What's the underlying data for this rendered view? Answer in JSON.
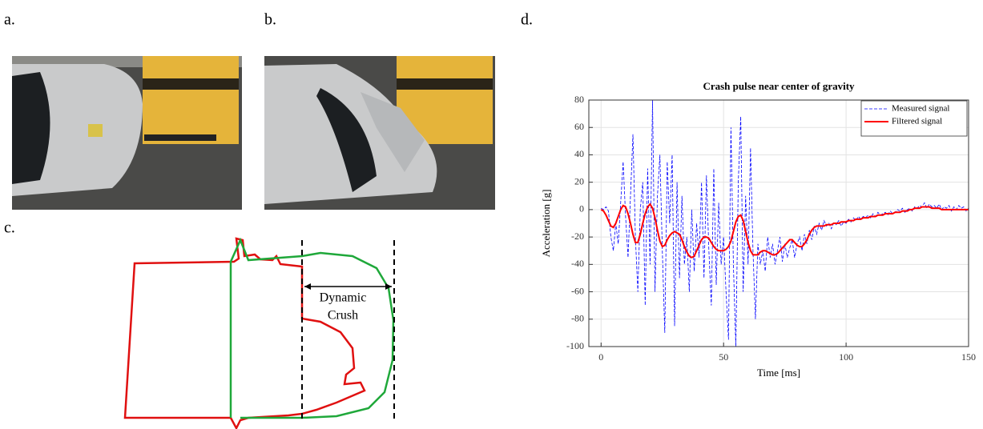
{
  "panels": {
    "a": "a.",
    "b": "b.",
    "c": "c.",
    "d": "d."
  },
  "diagram": {
    "label_lines": [
      "Dynamic",
      "Crush"
    ]
  },
  "chart_data": {
    "type": "line",
    "title": "Crash pulse near center of gravity",
    "x_label": "Time [ms]",
    "y_label": "Acceleration [g]",
    "xlim": [
      -5,
      150
    ],
    "ylim": [
      -100,
      80
    ],
    "xticks": [
      0,
      50,
      100,
      150
    ],
    "yticks": [
      -100,
      -80,
      -60,
      -40,
      -20,
      0,
      20,
      40,
      60,
      80
    ],
    "grid": true,
    "legend": "upper right",
    "x": [
      0,
      1,
      2,
      3,
      4,
      5,
      6,
      7,
      8,
      9,
      10,
      11,
      12,
      13,
      14,
      15,
      16,
      17,
      18,
      19,
      20,
      21,
      22,
      23,
      24,
      25,
      26,
      27,
      28,
      29,
      30,
      31,
      32,
      33,
      34,
      35,
      36,
      37,
      38,
      39,
      40,
      41,
      42,
      43,
      44,
      45,
      46,
      47,
      48,
      49,
      50,
      51,
      52,
      53,
      54,
      55,
      56,
      57,
      58,
      59,
      60,
      61,
      62,
      63,
      64,
      65,
      66,
      67,
      68,
      69,
      70,
      71,
      72,
      73,
      74,
      75,
      76,
      77,
      78,
      79,
      80,
      81,
      82,
      83,
      84,
      85,
      86,
      87,
      88,
      89,
      90,
      91,
      92,
      93,
      94,
      95,
      96,
      97,
      98,
      99,
      100,
      101,
      102,
      103,
      104,
      105,
      106,
      107,
      108,
      109,
      110,
      111,
      112,
      113,
      114,
      115,
      116,
      117,
      118,
      119,
      120,
      121,
      122,
      123,
      124,
      125,
      126,
      127,
      128,
      129,
      130,
      131,
      132,
      133,
      134,
      135,
      136,
      137,
      138,
      139,
      140,
      141,
      142,
      143,
      144,
      145,
      146,
      147,
      148,
      149,
      150
    ],
    "series": [
      {
        "name": "Measured signal",
        "color": "#0000ff",
        "dash": "dashed",
        "width": 0.8,
        "values": [
          1,
          0,
          2,
          -1,
          -20,
          -30,
          -10,
          -25,
          5,
          35,
          -5,
          -35,
          10,
          55,
          -20,
          -60,
          0,
          20,
          -70,
          30,
          -40,
          80,
          -60,
          10,
          40,
          -30,
          -90,
          35,
          -10,
          40,
          -85,
          20,
          -50,
          10,
          -40,
          -20,
          -60,
          0,
          -45,
          -10,
          -35,
          20,
          -50,
          25,
          -30,
          -70,
          30,
          -55,
          5,
          -40,
          -20,
          -60,
          -95,
          60,
          -40,
          -100,
          20,
          68,
          -60,
          10,
          -40,
          45,
          -30,
          -80,
          -25,
          -40,
          -30,
          -45,
          -20,
          -35,
          -25,
          -40,
          -30,
          -20,
          -38,
          -25,
          -35,
          -28,
          -22,
          -35,
          -25,
          -20,
          -30,
          -18,
          -25,
          -15,
          -22,
          -12,
          -18,
          -10,
          -15,
          -8,
          -12,
          -10,
          -14,
          -9,
          -11,
          -8,
          -12,
          -9,
          -10,
          -7,
          -9,
          -6,
          -8,
          -5,
          -7,
          -5,
          -6,
          -4,
          -6,
          -3,
          -5,
          -2,
          -4,
          -3,
          -2,
          -4,
          -1,
          -3,
          -2,
          0,
          -1,
          1,
          -2,
          0,
          1,
          -1,
          2,
          1,
          3,
          2,
          5,
          1,
          4,
          2,
          3,
          1,
          4,
          0,
          2,
          1,
          3,
          -1,
          2,
          0,
          3,
          1,
          2,
          -1,
          1
        ]
      },
      {
        "name": "Filtered signal",
        "color": "#ff0000",
        "dash": "solid",
        "width": 2,
        "values": [
          0,
          -1,
          -4,
          -8,
          -12,
          -13,
          -10,
          -5,
          0,
          3,
          2,
          -3,
          -10,
          -18,
          -24,
          -24,
          -18,
          -10,
          -3,
          2,
          4,
          1,
          -6,
          -15,
          -23,
          -27,
          -26,
          -22,
          -19,
          -17,
          -16,
          -17,
          -18,
          -22,
          -27,
          -31,
          -34,
          -35,
          -34,
          -30,
          -26,
          -22,
          -20,
          -20,
          -21,
          -24,
          -27,
          -29,
          -30,
          -30,
          -30,
          -29,
          -27,
          -23,
          -16,
          -9,
          -5,
          -4,
          -8,
          -16,
          -24,
          -30,
          -33,
          -33,
          -33,
          -31,
          -30,
          -30,
          -31,
          -32,
          -33,
          -33,
          -32,
          -30,
          -28,
          -26,
          -24,
          -22,
          -22,
          -24,
          -26,
          -27,
          -27,
          -25,
          -22,
          -18,
          -15,
          -13,
          -12,
          -12,
          -12,
          -12,
          -11,
          -11,
          -11,
          -10,
          -10,
          -10,
          -9,
          -9,
          -9,
          -8,
          -8,
          -8,
          -7,
          -7,
          -7,
          -6,
          -6,
          -6,
          -5,
          -5,
          -5,
          -4,
          -4,
          -4,
          -3,
          -3,
          -3,
          -3,
          -2,
          -2,
          -2,
          -1,
          -1,
          -1,
          0,
          0,
          1,
          1,
          1,
          2,
          2,
          2,
          2,
          1,
          1,
          1,
          1,
          0,
          0,
          0,
          0,
          0,
          0,
          0,
          0,
          0,
          0,
          0,
          0
        ]
      }
    ]
  }
}
